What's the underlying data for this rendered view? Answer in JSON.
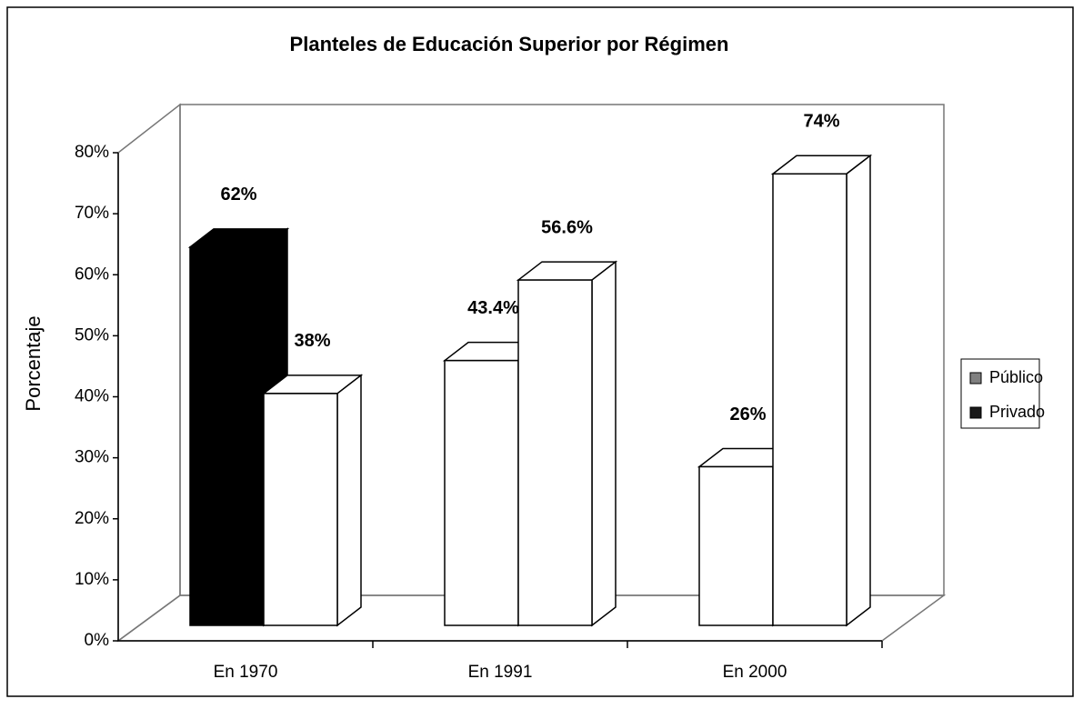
{
  "chart_data": {
    "type": "bar3d",
    "title": "Planteles de Educación Superior por Régimen",
    "y_label": "Porcentaje",
    "categories": [
      "En 1970",
      "En 1991",
      "En  2000"
    ],
    "series": [
      {
        "name": "Público",
        "color": "#808080",
        "point_colors": [
          "#000000",
          "#ffffff",
          "#ffffff"
        ],
        "values": [
          62,
          43.4,
          26
        ],
        "value_labels": [
          "62%",
          "43.4%",
          "26%"
        ]
      },
      {
        "name": "Privado",
        "color": "#1a1a1a",
        "point_colors": [
          "#ffffff",
          "#ffffff",
          "#ffffff"
        ],
        "values": [
          38,
          56.6,
          74
        ],
        "value_labels": [
          "38%",
          "56.6%",
          "74%"
        ]
      }
    ],
    "ylim": [
      0,
      80
    ],
    "yticks": [
      {
        "value": 0,
        "label": "0%"
      },
      {
        "value": 10,
        "label": "10%"
      },
      {
        "value": 20,
        "label": "20%"
      },
      {
        "value": 30,
        "label": "30%"
      },
      {
        "value": 40,
        "label": "40%"
      },
      {
        "value": 50,
        "label": "50%"
      },
      {
        "value": 60,
        "label": "60%"
      },
      {
        "value": 70,
        "label": "70%"
      },
      {
        "value": 80,
        "label": "80%"
      }
    ],
    "legend": "right"
  }
}
